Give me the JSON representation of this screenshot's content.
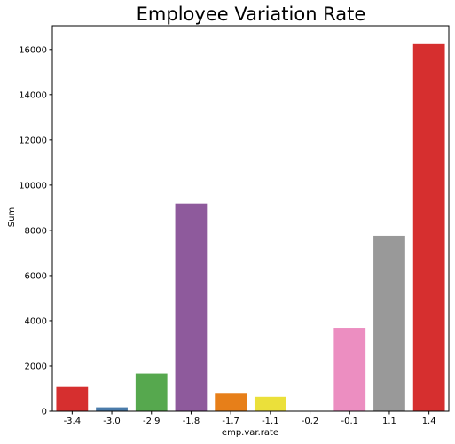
{
  "chart_data": {
    "type": "bar",
    "title": "Employee Variation Rate",
    "xlabel": "emp.var.rate",
    "ylabel": "Sum",
    "categories": [
      "-3.4",
      "-3.0",
      "-2.9",
      "-1.8",
      "-1.7",
      "-1.1",
      "-0.2",
      "-0.1",
      "1.1",
      "1.4"
    ],
    "values": [
      1070,
      172,
      1663,
      9184,
      773,
      635,
      10,
      3683,
      7763,
      16234
    ],
    "colors": [
      "#d62f2f",
      "#4a7baa",
      "#56a84e",
      "#8e5a9c",
      "#e77f19",
      "#ebe03a",
      "#a65628",
      "#ec8ec1",
      "#999999",
      "#d62f2f"
    ],
    "ylim": [
      0,
      17050
    ],
    "yticks": [
      0,
      2000,
      4000,
      6000,
      8000,
      10000,
      12000,
      14000,
      16000
    ],
    "grid": false,
    "legend": "none"
  }
}
